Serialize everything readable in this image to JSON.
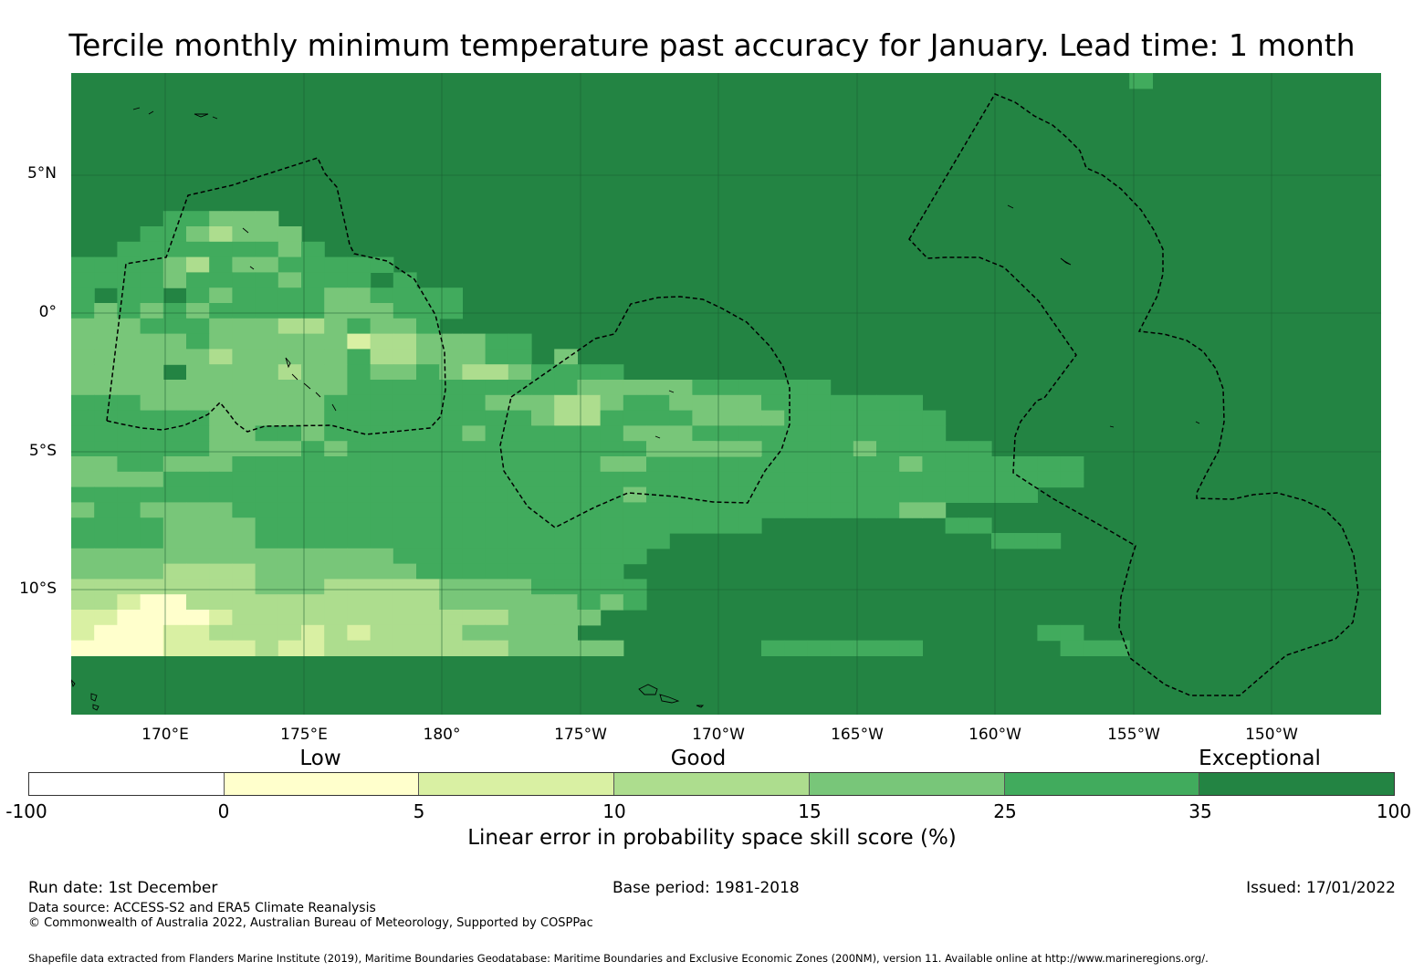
{
  "title": "Tercile monthly minimum temperature past accuracy for January. Lead time: 1 month",
  "map": {
    "lat_labels": [
      "5°N",
      "0°",
      "5°S",
      "10°S"
    ],
    "lon_labels": [
      "170°E",
      "175°E",
      "180°",
      "175°W",
      "170°W",
      "165°W",
      "160°W",
      "155°W",
      "150°W"
    ],
    "colors": {
      "ocean_fill": "#238443",
      "grid": "#1a5e30",
      "coast": "#000000",
      "eez": "#000000"
    }
  },
  "legend": {
    "categories": [
      "Low",
      "Good",
      "Exceptional"
    ],
    "ticks": [
      "-100",
      "0",
      "5",
      "10",
      "15",
      "25",
      "35",
      "100"
    ],
    "colors": [
      "#ffffff",
      "#ffffcc",
      "#d9f0a3",
      "#addd8e",
      "#78c679",
      "#41ab5d",
      "#238443"
    ],
    "title": "Linear error in probability space skill score (%)"
  },
  "footer": {
    "run_date": "Run date: 1st December",
    "base_period": "Base period: 1981-2018",
    "issued": "Issued: 17/01/2022",
    "data_source": "Data source: ACCESS-S2 and ERA5 Climate Reanalysis",
    "copyright": "© Commonwealth of Australia 2022, Australian Bureau of Meteorology, Supported by COSPPac",
    "shapefile": "Shapefile data extracted from Flanders Marine Institute (2019), Maritime Boundaries Geodatabase: Maritime Boundaries and Exclusive Economic Zones (200NM), version 11. Available online at http://www.marineregions.org/."
  }
}
